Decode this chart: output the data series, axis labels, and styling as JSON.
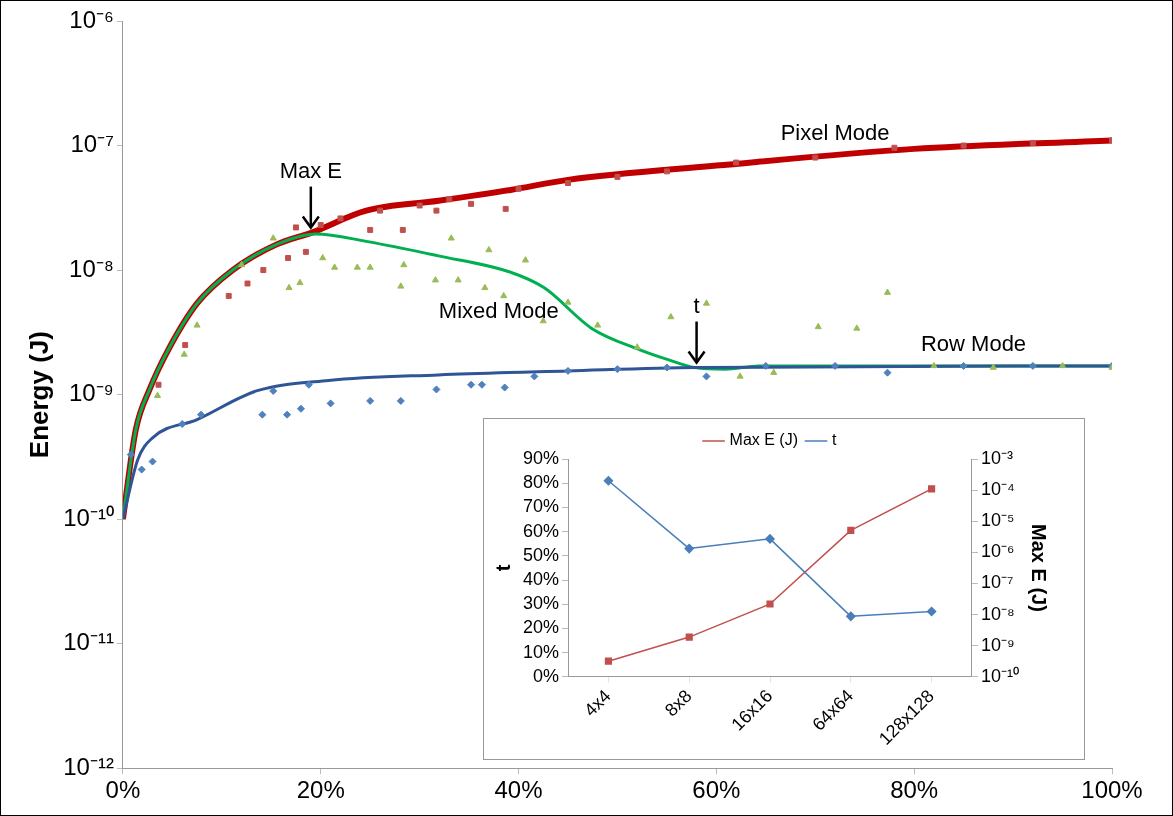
{
  "chart_data": [
    {
      "type": "line",
      "ylabel": "Energy (J)",
      "log": "y",
      "grid": false,
      "legend": false,
      "xlim": [
        0,
        100
      ],
      "xticks": [
        {
          "value": 0,
          "label": "0%"
        },
        {
          "value": 20,
          "label": "20%"
        },
        {
          "value": 40,
          "label": "40%"
        },
        {
          "value": 60,
          "label": "60%"
        },
        {
          "value": 80,
          "label": "80%"
        },
        {
          "value": 100,
          "label": "100%"
        }
      ],
      "ylim": [
        1e-12,
        1e-06
      ],
      "yticks": [
        {
          "value": 1e-12,
          "label": "10⁻¹²"
        },
        {
          "value": 1e-11,
          "label": "10⁻¹¹"
        },
        {
          "value": 1e-10,
          "label": "10⁻¹⁰"
        },
        {
          "value": 1e-09,
          "label": "10⁻⁹"
        },
        {
          "value": 1e-08,
          "label": "10⁻⁸"
        },
        {
          "value": 1e-07,
          "label": "10⁻⁷"
        },
        {
          "value": 1e-06,
          "label": "10⁻⁶"
        }
      ],
      "annotations": [
        {
          "text": "Max E",
          "x": 19,
          "y": 2e-08
        },
        {
          "text": "t",
          "x": 58,
          "y": 1.65e-09
        }
      ],
      "series": [
        {
          "type": "scatter",
          "marker": "square",
          "color": "#c0504d",
          "x": [
            3.6,
            6.3,
            10.7,
            12.6,
            14.2,
            16.7,
            17.5,
            18.5,
            20,
            22,
            25,
            26,
            28.3,
            30,
            31.7,
            33,
            35.2,
            38.7,
            40,
            45,
            50,
            55,
            62,
            70,
            78,
            85,
            92,
            100
          ],
          "values": [
            1.2e-09,
            2.5e-09,
            6.2e-09,
            7.8e-09,
            1e-08,
            1.25e-08,
            2.2e-08,
            1.4e-08,
            2.3e-08,
            2.6e-08,
            2.1e-08,
            3e-08,
            2.1e-08,
            3.3e-08,
            3e-08,
            3.7e-08,
            3.4e-08,
            3.1e-08,
            4.5e-08,
            5e-08,
            5.6e-08,
            6.2e-08,
            7.3e-08,
            8e-08,
            9.6e-08,
            1e-07,
            1.05e-07,
            1.1e-07
          ]
        },
        {
          "type": "scatter",
          "marker": "triangle",
          "color": "#9bbb59",
          "x": [
            3.5,
            6.2,
            7.5,
            12,
            15.2,
            16.8,
            17.9,
            20.2,
            21.4,
            23.7,
            25,
            28.1,
            28.4,
            31.6,
            33.2,
            33.9,
            36.6,
            37,
            38.5,
            40.7,
            42.5,
            45,
            48,
            52,
            55.4,
            59,
            62.4,
            65.8,
            70.3,
            74.2,
            77.3,
            82,
            88,
            95,
            100
          ],
          "values": [
            9.8e-10,
            2.1e-09,
            3.6e-09,
            1.1e-08,
            1.8e-08,
            7.2e-09,
            7.9e-09,
            1.25e-08,
            1.05e-08,
            1.05e-08,
            1.05e-08,
            7.4e-09,
            1.1e-08,
            8.3e-09,
            1.8e-08,
            8.3e-09,
            7.2e-09,
            1.45e-08,
            6.2e-09,
            1.2e-08,
            3.9e-09,
            5.5e-09,
            3.6e-09,
            2.4e-09,
            4.2e-09,
            5.4e-09,
            1.4e-09,
            1.5e-09,
            3.5e-09,
            3.4e-09,
            6.6e-09,
            1.7e-09,
            1.65e-09,
            1.7e-09,
            1.65e-09
          ]
        },
        {
          "type": "scatter",
          "marker": "diamond",
          "color": "#4f81bd",
          "x": [
            0.8,
            1.9,
            3,
            6,
            7.9,
            14.1,
            15.2,
            16.6,
            18,
            18.8,
            21,
            25,
            28.1,
            31.7,
            35.2,
            36.3,
            38.6,
            41.6,
            45,
            50,
            55,
            59,
            65,
            72,
            77.3,
            85,
            92,
            100
          ],
          "values": [
            3.3e-10,
            2.5e-10,
            2.9e-10,
            5.8e-10,
            6.9e-10,
            6.9e-10,
            1.07e-09,
            6.9e-10,
            7.7e-10,
            1.2e-09,
            8.5e-10,
            8.9e-10,
            8.9e-10,
            1.1e-09,
            1.2e-09,
            1.2e-09,
            1.14e-09,
            1.4e-09,
            1.55e-09,
            1.6e-09,
            1.65e-09,
            1.4e-09,
            1.7e-09,
            1.7e-09,
            1.5e-09,
            1.7e-09,
            1.7e-09,
            1.7e-09
          ]
        },
        {
          "type": "line",
          "name": "Pixel Mode",
          "marker": "none",
          "line_style": "solid",
          "color": "#c00000",
          "x": [
            0,
            1.3,
            2.7,
            4.6,
            7.5,
            11.1,
            15.5,
            19.1,
            24.6,
            31.9,
            39.2,
            45,
            60,
            80,
            100
          ],
          "values": [
            1e-10,
            5.2e-10,
            1.1e-09,
            2.3e-09,
            5.4e-09,
            1e-08,
            1.6e-08,
            2e-08,
            3e-08,
            3.6e-08,
            4.4e-08,
            5.3e-08,
            6.9e-08,
            9.4e-08,
            1.1e-07
          ]
        },
        {
          "type": "line",
          "name": "Mixed Mode",
          "marker": "none",
          "line_style": "solid",
          "color": "#00b050",
          "x": [
            0,
            1.3,
            2.7,
            4.6,
            7.5,
            11.1,
            15.5,
            19.5,
            24.6,
            31.9,
            39.2,
            42.6,
            47.4,
            52.2,
            55.2,
            57.8,
            60.9,
            64.3,
            100
          ],
          "values": [
            1e-10,
            5.2e-10,
            1.1e-09,
            2.3e-09,
            5.4e-09,
            1e-08,
            1.6e-08,
            1.95e-08,
            1.7e-08,
            1.3e-08,
            9.6e-09,
            7.2e-09,
            3.4e-09,
            2.3e-09,
            1.9e-09,
            1.65e-09,
            1.6e-09,
            1.7e-09,
            1.7e-09
          ]
        },
        {
          "type": "line",
          "name": "Row Mode",
          "marker": "none",
          "line_style": "solid",
          "color": "#2f5597",
          "x": [
            0,
            1.5,
            3,
            7.5,
            13.5,
            20.8,
            31.9,
            45,
            58,
            100
          ],
          "values": [
            1e-10,
            3e-10,
            4.5e-10,
            6.3e-10,
            1.07e-09,
            1.3e-09,
            1.44e-09,
            1.55e-09,
            1.65e-09,
            1.7e-09
          ]
        }
      ]
    },
    {
      "type": "line",
      "ylabel": "t",
      "y2label": "Max E (J)",
      "log": "y2",
      "grid": false,
      "legend": "top",
      "categories": [
        "4x4",
        "8x8",
        "16x16",
        "64x64",
        "128x128"
      ],
      "ylim": [
        0,
        90
      ],
      "yticks": [
        {
          "value": 0,
          "label": "0%"
        },
        {
          "value": 10,
          "label": "10%"
        },
        {
          "value": 20,
          "label": "20%"
        },
        {
          "value": 30,
          "label": "30%"
        },
        {
          "value": 40,
          "label": "40%"
        },
        {
          "value": 50,
          "label": "50%"
        },
        {
          "value": 60,
          "label": "60%"
        },
        {
          "value": 70,
          "label": "70%"
        },
        {
          "value": 80,
          "label": "80%"
        },
        {
          "value": 90,
          "label": "90%"
        }
      ],
      "y2lim": [
        1e-10,
        0.001
      ],
      "y2ticks": [
        {
          "value": 1e-10,
          "label": "10⁻¹⁰"
        },
        {
          "value": 1e-09,
          "label": "10⁻⁹"
        },
        {
          "value": 1e-08,
          "label": "10⁻⁸"
        },
        {
          "value": 1e-07,
          "label": "10⁻⁷"
        },
        {
          "value": 1e-06,
          "label": "10⁻⁶"
        },
        {
          "value": 1e-05,
          "label": "10⁻⁵"
        },
        {
          "value": 0.0001,
          "label": "10⁻⁴"
        },
        {
          "value": 0.001,
          "label": "10⁻³"
        }
      ],
      "series": [
        {
          "name": "Max E (J)",
          "axis": "y2",
          "marker": "square",
          "line_style": "solid",
          "color": "#c0504d",
          "values": [
            3.2e-10,
            1.9e-09,
            2.2e-08,
            5.1e-06,
            0.00011
          ]
        },
        {
          "name": "t",
          "marker": "diamond",
          "line_style": "solid",
          "color": "#4a7ebb",
          "values": [
            81,
            53,
            57,
            25,
            27
          ]
        }
      ]
    }
  ]
}
